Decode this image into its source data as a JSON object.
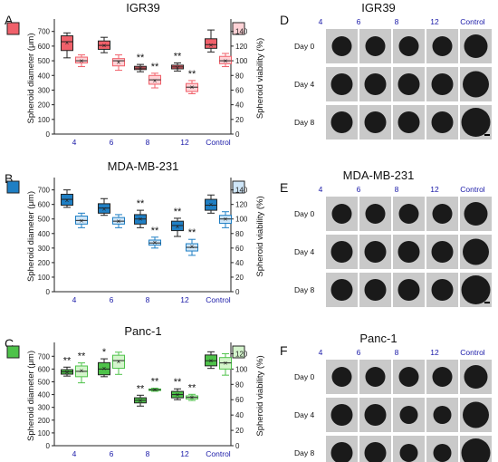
{
  "panel_letters": [
    "A",
    "B",
    "C",
    "D",
    "E",
    "F"
  ],
  "x_categories": [
    "4",
    "6",
    "8",
    "12",
    "Control"
  ],
  "image_rows": [
    "Day 0",
    "Day 4",
    "Day 8"
  ],
  "left_axis_label": "Spheroid diameter (μm)",
  "right_axis_label": "Spheroid viability (%)",
  "significance_label": "**",
  "significance_label_single": "*",
  "colors": {
    "category_text": "#1a1aa8",
    "igr_dark": "#f0606a",
    "igr_light": "#ffd2d6",
    "mda_dark": "#1f7fc4",
    "mda_light": "#cfe6f8",
    "panc_dark": "#4ec24a",
    "panc_light": "#d4f5cc"
  },
  "chart_data": [
    {
      "type": "box",
      "panel": "A",
      "title": "IGR39",
      "categories": [
        "4",
        "6",
        "8",
        "12",
        "Control"
      ],
      "left_ticks": [
        0,
        100,
        200,
        300,
        400,
        500,
        600,
        700
      ],
      "right_ticks": [
        0,
        20,
        40,
        60,
        80,
        100,
        120,
        140
      ],
      "ylim_left": [
        0,
        760
      ],
      "ylim_right": [
        0,
        152
      ],
      "series": [
        {
          "axis": "left",
          "values": [
            {
              "min": 520,
              "q1": 570,
              "median": 630,
              "mean": 625,
              "q3": 670,
              "max": 690,
              "sig": ""
            },
            {
              "min": 555,
              "q1": 578,
              "median": 605,
              "mean": 605,
              "q3": 635,
              "max": 660,
              "sig": ""
            },
            {
              "min": 425,
              "q1": 440,
              "median": 450,
              "mean": 450,
              "q3": 462,
              "max": 475,
              "sig": "**"
            },
            {
              "min": 430,
              "q1": 445,
              "median": 458,
              "mean": 455,
              "q3": 470,
              "max": 485,
              "sig": "**"
            },
            {
              "min": 560,
              "q1": 585,
              "median": 610,
              "mean": 610,
              "q3": 650,
              "max": 710,
              "sig": ""
            }
          ]
        },
        {
          "axis": "right",
          "values": [
            {
              "min": 92,
              "q1": 97,
              "median": 100,
              "mean": 100,
              "q3": 105,
              "max": 108,
              "sig": ""
            },
            {
              "min": 87,
              "q1": 93,
              "median": 100,
              "mean": 98,
              "q3": 103,
              "max": 108,
              "sig": ""
            },
            {
              "min": 63,
              "q1": 68,
              "median": 74,
              "mean": 73,
              "q3": 80,
              "max": 83,
              "sig": "**"
            },
            {
              "min": 55,
              "q1": 58,
              "median": 64,
              "mean": 64,
              "q3": 69,
              "max": 73,
              "sig": "**"
            },
            {
              "min": 92,
              "q1": 96,
              "median": 100,
              "mean": 100,
              "q3": 106,
              "max": 110,
              "sig": ""
            }
          ]
        }
      ]
    },
    {
      "type": "box",
      "panel": "B",
      "title": "MDA-MB-231",
      "categories": [
        "4",
        "6",
        "8",
        "12",
        "Control"
      ],
      "left_ticks": [
        0,
        100,
        200,
        300,
        400,
        500,
        600,
        700
      ],
      "right_ticks": [
        0,
        20,
        40,
        60,
        80,
        100,
        120,
        140
      ],
      "ylim_left": [
        0,
        760
      ],
      "ylim_right": [
        0,
        152
      ],
      "series": [
        {
          "axis": "left",
          "values": [
            {
              "min": 580,
              "q1": 595,
              "median": 635,
              "mean": 630,
              "q3": 670,
              "max": 700,
              "sig": ""
            },
            {
              "min": 525,
              "q1": 540,
              "median": 575,
              "mean": 570,
              "q3": 605,
              "max": 640,
              "sig": ""
            },
            {
              "min": 440,
              "q1": 465,
              "median": 500,
              "mean": 500,
              "q3": 530,
              "max": 560,
              "sig": "**"
            },
            {
              "min": 380,
              "q1": 420,
              "median": 455,
              "mean": 450,
              "q3": 485,
              "max": 505,
              "sig": "**"
            },
            {
              "min": 540,
              "q1": 560,
              "median": 595,
              "mean": 600,
              "q3": 635,
              "max": 665,
              "sig": ""
            }
          ]
        },
        {
          "axis": "right",
          "values": [
            {
              "min": 88,
              "q1": 93,
              "median": 98,
              "mean": 98,
              "q3": 104,
              "max": 108,
              "sig": ""
            },
            {
              "min": 88,
              "q1": 93,
              "median": 97,
              "mean": 97,
              "q3": 102,
              "max": 106,
              "sig": ""
            },
            {
              "min": 60,
              "q1": 64,
              "median": 67,
              "mean": 68,
              "q3": 71,
              "max": 75,
              "sig": "**"
            },
            {
              "min": 50,
              "q1": 56,
              "median": 61,
              "mean": 62,
              "q3": 66,
              "max": 72,
              "sig": "**"
            },
            {
              "min": 88,
              "q1": 94,
              "median": 100,
              "mean": 100,
              "q3": 105,
              "max": 110,
              "sig": ""
            }
          ]
        }
      ]
    },
    {
      "type": "box",
      "panel": "C",
      "title": "Panc-1",
      "categories": [
        "4",
        "6",
        "8",
        "12",
        "Control"
      ],
      "left_ticks": [
        0,
        100,
        200,
        300,
        400,
        500,
        600,
        700
      ],
      "right_ticks": [
        0,
        20,
        40,
        60,
        80,
        100,
        120
      ],
      "ylim_left": [
        0,
        780
      ],
      "ylim_right": [
        0,
        130
      ],
      "series": [
        {
          "axis": "left",
          "values": [
            {
              "min": 545,
              "q1": 560,
              "median": 578,
              "mean": 578,
              "q3": 595,
              "max": 615,
              "sig": "**"
            },
            {
              "min": 540,
              "q1": 555,
              "median": 600,
              "mean": 605,
              "q3": 650,
              "max": 680,
              "sig": "*"
            },
            {
              "min": 310,
              "q1": 335,
              "median": 355,
              "mean": 355,
              "q3": 375,
              "max": 395,
              "sig": "**"
            },
            {
              "min": 360,
              "q1": 375,
              "median": 400,
              "mean": 400,
              "q3": 425,
              "max": 445,
              "sig": "**"
            },
            {
              "min": 605,
              "q1": 625,
              "median": 665,
              "mean": 665,
              "q3": 710,
              "max": 735,
              "sig": ""
            }
          ]
        },
        {
          "axis": "right",
          "values": [
            {
              "min": 82,
              "q1": 90,
              "median": 97,
              "mean": 98,
              "q3": 104,
              "max": 108,
              "sig": "**"
            },
            {
              "min": 93,
              "q1": 101,
              "median": 111,
              "mean": 110,
              "q3": 118,
              "max": 122,
              "sig": ""
            },
            {
              "min": 71,
              "q1": 72,
              "median": 73,
              "mean": 73,
              "q3": 74,
              "max": 75,
              "sig": "**"
            },
            {
              "min": 59,
              "q1": 61,
              "median": 63,
              "mean": 63,
              "q3": 65,
              "max": 67,
              "sig": "**"
            },
            {
              "min": 92,
              "q1": 100,
              "median": 108,
              "mean": 108,
              "q3": 115,
              "max": 120,
              "sig": ""
            }
          ]
        }
      ]
    }
  ],
  "image_panels": [
    {
      "panel": "D",
      "title": "IGR39"
    },
    {
      "panel": "E",
      "title": "MDA-MB-231"
    },
    {
      "panel": "F",
      "title": "Panc-1"
    }
  ]
}
